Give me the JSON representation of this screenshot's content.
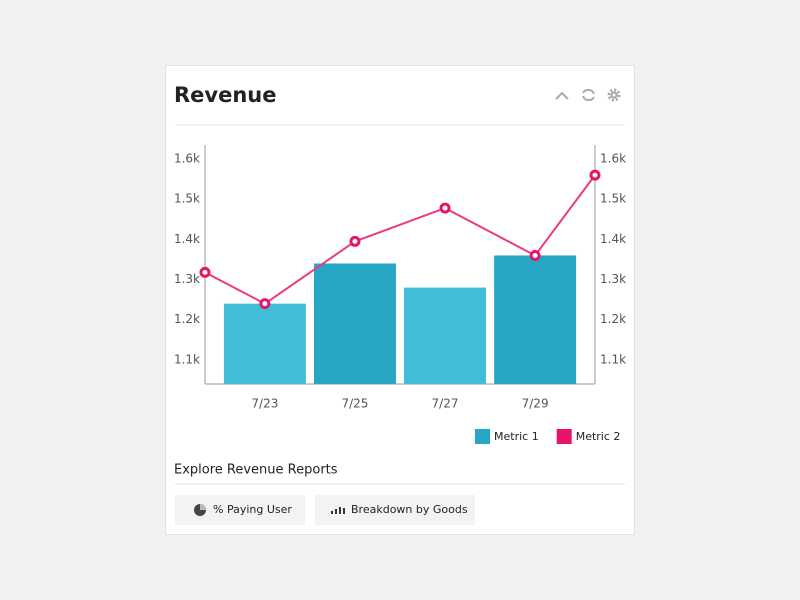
{
  "header": {
    "title": "Revenue"
  },
  "chart_data": {
    "type": "combo",
    "xlim": [
      21.67,
      30.33
    ],
    "xticks": [
      {
        "value": 23,
        "label": "7/23"
      },
      {
        "value": 25,
        "label": "7/25"
      },
      {
        "value": 27,
        "label": "7/27"
      },
      {
        "value": 29,
        "label": "7/29"
      }
    ],
    "ylim": [
      1040,
      1635
    ],
    "yticks": [
      {
        "value": 1100,
        "label": "1.1k"
      },
      {
        "value": 1200,
        "label": "1.2k"
      },
      {
        "value": 1300,
        "label": "1.3k"
      },
      {
        "value": 1400,
        "label": "1.4k"
      },
      {
        "value": 1500,
        "label": "1.5k"
      },
      {
        "value": 1600,
        "label": "1.6k"
      }
    ],
    "y2lim": [
      1040,
      1635
    ],
    "y2ticks": [
      {
        "value": 1100,
        "label": "1.1k"
      },
      {
        "value": 1200,
        "label": "1.2k"
      },
      {
        "value": 1300,
        "label": "1.3k"
      },
      {
        "value": 1400,
        "label": "1.4k"
      },
      {
        "value": 1500,
        "label": "1.5k"
      },
      {
        "value": 1600,
        "label": "1.6k"
      }
    ],
    "series": [
      {
        "name": "Metric 1",
        "type": "bar",
        "color": "#27a7c5",
        "colors": [
          "#41bdd8",
          "#27a7c5",
          "#41bdd8",
          "#27a7c5"
        ],
        "x": [
          23,
          25,
          27,
          29
        ],
        "values": [
          1240,
          1340,
          1280,
          1360
        ]
      },
      {
        "name": "Metric 2",
        "type": "line",
        "color": "#e8146c",
        "line_color": "#ea3b7e",
        "x": [
          21.67,
          23,
          25,
          27,
          29,
          30.33
        ],
        "values": [
          1318,
          1240,
          1395,
          1478,
          1360,
          1560
        ]
      }
    ],
    "legend": "bottom-right"
  },
  "reports": {
    "title": "Explore Revenue Reports",
    "buttons": [
      "% Paying User",
      "Breakdown by Goods"
    ]
  }
}
